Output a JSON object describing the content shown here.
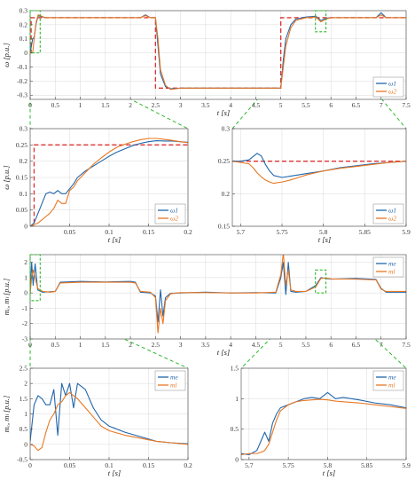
{
  "colors": {
    "series_1": "#2166ac",
    "series_2": "#e87722",
    "reference": "#e03030",
    "zoom": "#2eb82e"
  },
  "chart_data": [
    {
      "id": "speed_full",
      "type": "line",
      "xlabel": "t [s]",
      "ylabel": "ω  [p.u.]",
      "xlim": [
        0,
        7.5
      ],
      "ylim": [
        -0.33,
        0.3
      ],
      "xticks": [
        0,
        0.5,
        1,
        1.5,
        2,
        2.5,
        3,
        3.5,
        4,
        4.5,
        5,
        5.5,
        6,
        6.5,
        7,
        7.5
      ],
      "yticks": [
        -0.3,
        -0.2,
        -0.1,
        0,
        0.1,
        0.2,
        0.3
      ],
      "grid": true,
      "legend": "bottom-right",
      "reference": {
        "x": [
          0,
          0.02,
          0.02,
          2.5,
          2.5,
          5.0,
          5.0,
          7.5
        ],
        "y": [
          0,
          0,
          0.25,
          0.25,
          -0.25,
          -0.25,
          0.25,
          0.25
        ]
      },
      "series": [
        {
          "name": "ω1",
          "x": [
            0,
            0.05,
            0.08,
            0.12,
            0.16,
            0.2,
            0.3,
            0.5,
            1.0,
            1.5,
            2.2,
            2.3,
            2.4,
            2.5,
            2.55,
            2.6,
            2.7,
            2.8,
            3.0,
            3.5,
            4.0,
            4.5,
            5.0,
            5.05,
            5.1,
            5.2,
            5.3,
            5.5,
            5.7,
            5.8,
            5.9,
            6.0,
            6.5,
            6.9,
            7.0,
            7.1,
            7.5
          ],
          "y": [
            0,
            0.1,
            0.11,
            0.21,
            0.265,
            0.26,
            0.25,
            0.25,
            0.25,
            0.25,
            0.25,
            0.27,
            0.25,
            0.25,
            0.05,
            -0.15,
            -0.24,
            -0.255,
            -0.25,
            -0.25,
            -0.25,
            -0.25,
            -0.25,
            -0.05,
            0.1,
            0.2,
            0.24,
            0.255,
            0.26,
            0.23,
            0.245,
            0.25,
            0.25,
            0.25,
            0.285,
            0.25,
            0.25
          ]
        },
        {
          "name": "ω2",
          "x": [
            0,
            0.05,
            0.08,
            0.12,
            0.16,
            0.2,
            0.3,
            0.5,
            1.0,
            1.5,
            2.2,
            2.3,
            2.4,
            2.5,
            2.55,
            2.6,
            2.7,
            2.8,
            3.0,
            3.5,
            4.0,
            4.5,
            5.0,
            5.05,
            5.1,
            5.2,
            5.3,
            5.5,
            5.7,
            5.8,
            5.9,
            6.0,
            6.5,
            6.9,
            7.0,
            7.1,
            7.5
          ],
          "y": [
            0,
            0.0,
            0.1,
            0.22,
            0.27,
            0.265,
            0.25,
            0.25,
            0.25,
            0.25,
            0.25,
            0.265,
            0.25,
            0.25,
            0.1,
            -0.12,
            -0.23,
            -0.26,
            -0.25,
            -0.25,
            -0.25,
            -0.25,
            -0.25,
            -0.1,
            0.05,
            0.18,
            0.23,
            0.25,
            0.255,
            0.22,
            0.24,
            0.25,
            0.25,
            0.25,
            0.27,
            0.25,
            0.25
          ]
        }
      ]
    },
    {
      "id": "speed_zoom_start",
      "type": "line",
      "xlabel": "t [s]",
      "ylabel": "ω  [p.u.]",
      "xlim": [
        0,
        0.2
      ],
      "ylim": [
        0,
        0.3
      ],
      "xticks": [
        0.05,
        0.1,
        0.15,
        0.2
      ],
      "yticks": [
        0,
        0.05,
        0.1,
        0.15,
        0.2,
        0.25,
        0.3
      ],
      "grid": true,
      "legend": "bottom-right",
      "reference": {
        "x": [
          0,
          0.005,
          0.005,
          0.2
        ],
        "y": [
          0,
          0,
          0.25,
          0.25
        ]
      },
      "series": [
        {
          "name": "ω1",
          "x": [
            0,
            0.005,
            0.01,
            0.015,
            0.02,
            0.025,
            0.03,
            0.035,
            0.04,
            0.045,
            0.05,
            0.055,
            0.06,
            0.07,
            0.08,
            0.09,
            0.1,
            0.11,
            0.12,
            0.13,
            0.14,
            0.15,
            0.16,
            0.17,
            0.18,
            0.19,
            0.2
          ],
          "y": [
            0,
            0.01,
            0.04,
            0.07,
            0.1,
            0.105,
            0.1,
            0.11,
            0.1,
            0.1,
            0.115,
            0.13,
            0.15,
            0.17,
            0.185,
            0.2,
            0.215,
            0.228,
            0.238,
            0.248,
            0.255,
            0.26,
            0.263,
            0.262,
            0.262,
            0.26,
            0.258
          ]
        },
        {
          "name": "ω2",
          "x": [
            0,
            0.005,
            0.01,
            0.015,
            0.02,
            0.025,
            0.03,
            0.035,
            0.04,
            0.045,
            0.05,
            0.055,
            0.06,
            0.07,
            0.08,
            0.09,
            0.1,
            0.11,
            0.12,
            0.13,
            0.14,
            0.15,
            0.16,
            0.17,
            0.18,
            0.19,
            0.2
          ],
          "y": [
            0,
            0.005,
            0.01,
            0.02,
            0.03,
            0.04,
            0.055,
            0.08,
            0.07,
            0.07,
            0.11,
            0.12,
            0.14,
            0.165,
            0.19,
            0.21,
            0.228,
            0.243,
            0.252,
            0.26,
            0.266,
            0.27,
            0.27,
            0.267,
            0.264,
            0.26,
            0.257
          ]
        }
      ]
    },
    {
      "id": "speed_zoom_step",
      "type": "line",
      "xlabel": "t [s]",
      "ylabel": "",
      "xlim": [
        5.69,
        5.9
      ],
      "ylim": [
        0.15,
        0.3
      ],
      "xticks": [
        5.7,
        5.75,
        5.8,
        5.85,
        5.9
      ],
      "yticks": [
        0.15,
        0.2,
        0.25,
        0.3
      ],
      "grid": true,
      "legend": "bottom-right",
      "reference": {
        "x": [
          5.69,
          5.9
        ],
        "y": [
          0.25,
          0.25
        ]
      },
      "series": [
        {
          "name": "ω1",
          "x": [
            5.69,
            5.7,
            5.71,
            5.715,
            5.72,
            5.725,
            5.73,
            5.735,
            5.74,
            5.75,
            5.76,
            5.77,
            5.78,
            5.79,
            5.8,
            5.82,
            5.84,
            5.86,
            5.88,
            5.9
          ],
          "y": [
            0.25,
            0.25,
            0.252,
            0.257,
            0.262,
            0.258,
            0.245,
            0.235,
            0.228,
            0.225,
            0.227,
            0.229,
            0.231,
            0.233,
            0.235,
            0.24,
            0.243,
            0.246,
            0.248,
            0.25
          ]
        },
        {
          "name": "ω2",
          "x": [
            5.69,
            5.7,
            5.71,
            5.715,
            5.72,
            5.725,
            5.73,
            5.735,
            5.74,
            5.75,
            5.76,
            5.77,
            5.78,
            5.79,
            5.8,
            5.82,
            5.84,
            5.86,
            5.88,
            5.9
          ],
          "y": [
            0.25,
            0.248,
            0.246,
            0.24,
            0.232,
            0.226,
            0.221,
            0.218,
            0.216,
            0.218,
            0.221,
            0.225,
            0.229,
            0.232,
            0.235,
            0.239,
            0.242,
            0.245,
            0.248,
            0.25
          ]
        }
      ]
    },
    {
      "id": "torque_full",
      "type": "line",
      "xlabel": "t [s]",
      "ylabel": "mₑ, mₗ  [p.u.]",
      "xlim": [
        0,
        7.5
      ],
      "ylim": [
        -3,
        2.5
      ],
      "xticks": [
        0,
        0.5,
        1,
        1.5,
        2,
        2.5,
        3,
        3.5,
        4,
        4.5,
        5,
        5.5,
        6,
        6.5,
        7,
        7.5
      ],
      "yticks": [
        -3,
        -2,
        -1,
        0,
        1,
        2
      ],
      "grid": true,
      "legend": "top-right",
      "series": [
        {
          "name": "me",
          "x": [
            0,
            0.03,
            0.06,
            0.1,
            0.15,
            0.25,
            0.4,
            0.5,
            0.6,
            1.0,
            1.5,
            2.0,
            2.1,
            2.2,
            2.4,
            2.5,
            2.55,
            2.6,
            2.65,
            2.7,
            2.8,
            3.0,
            3.5,
            4.0,
            4.5,
            4.9,
            5.0,
            5.05,
            5.1,
            5.15,
            5.2,
            5.3,
            5.5,
            5.7,
            5.8,
            5.9,
            6.0,
            6.5,
            6.9,
            7.0,
            7.1,
            7.5
          ],
          "y": [
            0,
            2.0,
            0.5,
            1.9,
            0.2,
            0.05,
            0.08,
            0.1,
            0.7,
            0.75,
            0.72,
            0.75,
            0.7,
            0.05,
            0.0,
            -0.2,
            -1.9,
            0.2,
            -1.5,
            -0.3,
            -0.02,
            0.0,
            0.05,
            0.0,
            0.02,
            0.0,
            1.0,
            2.0,
            -0.1,
            2.0,
            0.1,
            0.05,
            0.1,
            0.5,
            1.0,
            0.95,
            0.9,
            0.95,
            0.88,
            0.3,
            0.05,
            0.05
          ]
        },
        {
          "name": "ml",
          "x": [
            0,
            0.03,
            0.06,
            0.1,
            0.15,
            0.25,
            0.4,
            0.5,
            0.6,
            1.0,
            1.5,
            2.0,
            2.1,
            2.2,
            2.4,
            2.5,
            2.55,
            2.6,
            2.65,
            2.7,
            2.8,
            3.0,
            3.5,
            4.0,
            4.5,
            4.9,
            5.0,
            5.05,
            5.1,
            5.15,
            5.2,
            5.3,
            5.5,
            5.7,
            5.8,
            5.9,
            6.0,
            6.5,
            6.9,
            7.0,
            7.1,
            7.5
          ],
          "y": [
            0,
            1.0,
            1.5,
            1.0,
            0.3,
            0.1,
            0.05,
            0.1,
            0.65,
            0.7,
            0.7,
            0.7,
            0.65,
            0.1,
            0.05,
            -0.3,
            -2.6,
            -1.0,
            -2.0,
            -0.5,
            -0.05,
            0.02,
            0.02,
            0.0,
            0.0,
            0.05,
            1.2,
            2.6,
            0.5,
            1.5,
            0.2,
            0.1,
            0.1,
            0.4,
            0.95,
            0.98,
            0.92,
            0.9,
            0.85,
            0.25,
            0.1,
            0.1
          ]
        }
      ]
    },
    {
      "id": "torque_zoom_start",
      "type": "line",
      "xlabel": "t [s]",
      "ylabel": "mₑ, mₗ  [p.u.]",
      "xlim": [
        0,
        0.2
      ],
      "ylim": [
        -0.5,
        2.5
      ],
      "xticks": [
        0,
        0.05,
        0.1,
        0.15,
        0.2
      ],
      "yticks": [
        -0.5,
        0,
        0.5,
        1,
        1.5,
        2,
        2.5
      ],
      "grid": true,
      "legend": "top-right",
      "series": [
        {
          "name": "me",
          "x": [
            0,
            0.005,
            0.01,
            0.015,
            0.02,
            0.025,
            0.03,
            0.035,
            0.04,
            0.045,
            0.05,
            0.055,
            0.06,
            0.065,
            0.07,
            0.08,
            0.09,
            0.1,
            0.12,
            0.14,
            0.16,
            0.18,
            0.2
          ],
          "y": [
            0.1,
            1.3,
            1.6,
            1.5,
            1.3,
            1.3,
            1.8,
            0.3,
            2.0,
            1.6,
            2.0,
            1.2,
            2.0,
            1.9,
            1.8,
            1.2,
            0.8,
            0.6,
            0.4,
            0.25,
            0.1,
            0.05,
            0.02
          ]
        },
        {
          "name": "ml",
          "x": [
            0,
            0.005,
            0.01,
            0.015,
            0.02,
            0.025,
            0.03,
            0.035,
            0.04,
            0.045,
            0.05,
            0.055,
            0.06,
            0.065,
            0.07,
            0.08,
            0.09,
            0.1,
            0.12,
            0.14,
            0.16,
            0.18,
            0.2
          ],
          "y": [
            0.0,
            -0.05,
            -0.2,
            -0.1,
            0.4,
            0.8,
            1.0,
            1.3,
            1.4,
            1.6,
            1.7,
            1.6,
            1.5,
            1.35,
            1.2,
            0.9,
            0.6,
            0.45,
            0.3,
            0.2,
            0.1,
            0.05,
            0.0
          ]
        }
      ]
    },
    {
      "id": "torque_zoom_step",
      "type": "line",
      "xlabel": "t [s]",
      "ylabel": "",
      "xlim": [
        5.69,
        5.9
      ],
      "ylim": [
        0,
        1.5
      ],
      "xticks": [
        5.7,
        5.75,
        5.8,
        5.85,
        5.9
      ],
      "yticks": [
        0,
        0.5,
        1,
        1.5
      ],
      "grid": true,
      "legend": "top-right",
      "series": [
        {
          "name": "me",
          "x": [
            5.69,
            5.7,
            5.71,
            5.715,
            5.72,
            5.725,
            5.73,
            5.735,
            5.74,
            5.75,
            5.76,
            5.77,
            5.78,
            5.79,
            5.8,
            5.81,
            5.82,
            5.84,
            5.86,
            5.88,
            5.9
          ],
          "y": [
            0.1,
            0.08,
            0.15,
            0.3,
            0.45,
            0.3,
            0.6,
            0.75,
            0.85,
            0.9,
            0.95,
            1.0,
            1.02,
            1.0,
            1.1,
            1.0,
            1.02,
            0.98,
            0.93,
            0.9,
            0.85
          ]
        },
        {
          "name": "ml",
          "x": [
            5.69,
            5.7,
            5.71,
            5.715,
            5.72,
            5.725,
            5.73,
            5.735,
            5.74,
            5.75,
            5.76,
            5.77,
            5.78,
            5.79,
            5.8,
            5.81,
            5.82,
            5.84,
            5.86,
            5.88,
            5.9
          ],
          "y": [
            0.08,
            0.1,
            0.1,
            0.12,
            0.15,
            0.25,
            0.45,
            0.65,
            0.8,
            0.9,
            0.95,
            0.97,
            0.98,
            0.99,
            0.98,
            0.96,
            0.95,
            0.93,
            0.9,
            0.87,
            0.84
          ]
        }
      ]
    }
  ],
  "legend_labels": {
    "speed": [
      "ω1",
      "ω2"
    ],
    "torque": [
      "me",
      "ml"
    ]
  }
}
